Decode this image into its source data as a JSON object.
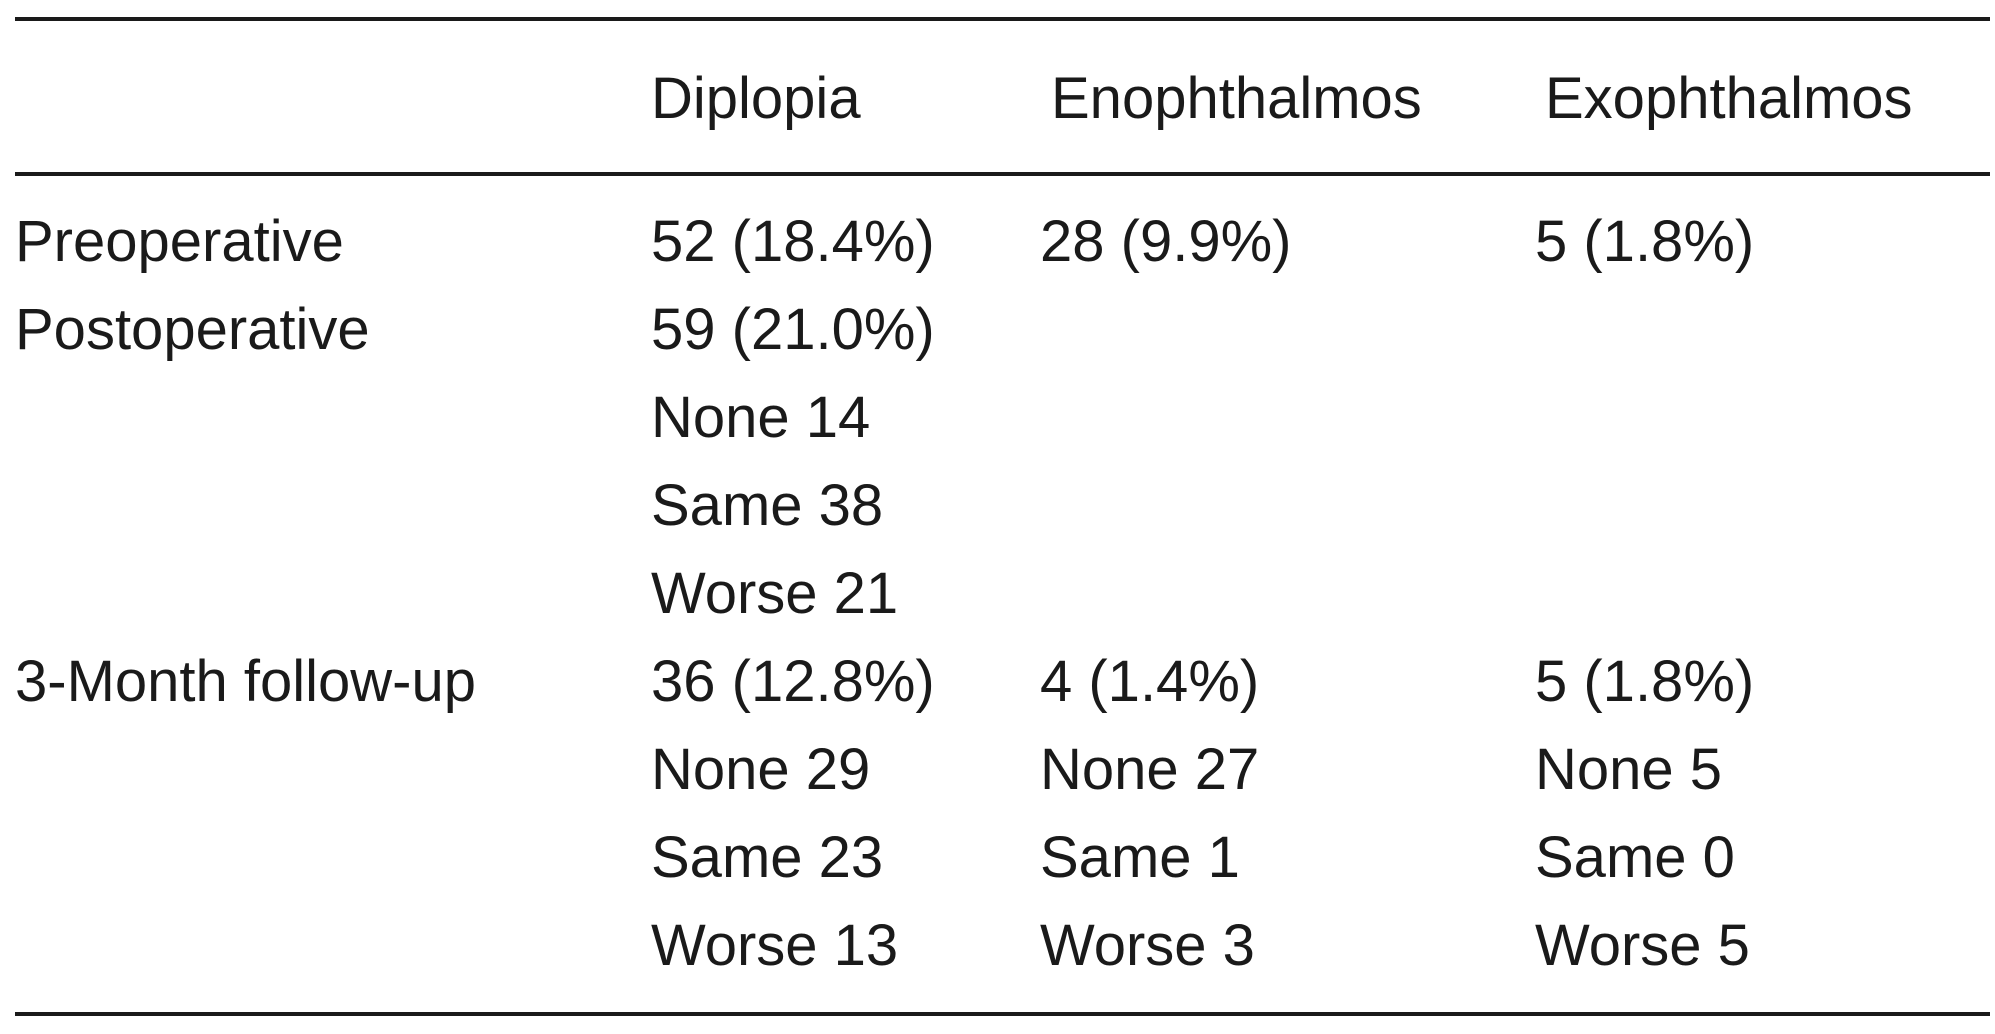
{
  "table": {
    "columns": [
      "Diplopia",
      "Enophthalmos",
      "Exophthalmos"
    ],
    "rows": [
      {
        "label": "Preoperative",
        "cells": [
          [
            "52 (18.4%)"
          ],
          [
            "28 (9.9%)"
          ],
          [
            "5 (1.8%)"
          ]
        ]
      },
      {
        "label": "Postoperative",
        "cells": [
          [
            "59 (21.0%)",
            "None 14",
            "Same 38",
            "Worse 21"
          ],
          [],
          []
        ]
      },
      {
        "label": "3-Month follow-up",
        "cells": [
          [
            "36 (12.8%)",
            "None 29",
            "Same 23",
            "Worse 13"
          ],
          [
            "4 (1.4%)",
            "None 27",
            "Same 1",
            "Worse 3"
          ],
          [
            "5 (1.8%)",
            "None 5",
            "Same 0",
            "Worse 5"
          ]
        ]
      }
    ]
  }
}
